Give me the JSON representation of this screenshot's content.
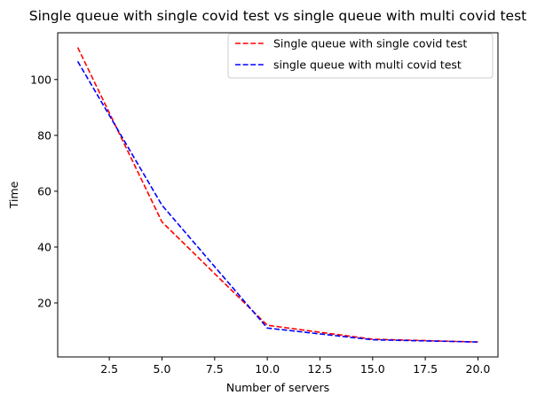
{
  "chart_data": {
    "type": "line",
    "title": "Single queue with single covid test vs single queue with multi covid test",
    "xlabel": "Number of servers",
    "ylabel": "Time",
    "xlim": [
      0.05,
      20.95
    ],
    "ylim": [
      0.65,
      116.75
    ],
    "xticks": [
      2.5,
      5.0,
      7.5,
      10.0,
      12.5,
      15.0,
      17.5,
      20.0
    ],
    "xtick_labels": [
      "2.5",
      "5.0",
      "7.5",
      "10.0",
      "12.5",
      "15.0",
      "17.5",
      "20.0"
    ],
    "yticks": [
      20,
      40,
      60,
      80,
      100
    ],
    "ytick_labels": [
      "20",
      "40",
      "60",
      "80",
      "100"
    ],
    "grid": false,
    "legend_position": "top-right",
    "series": [
      {
        "name": "Single queue with single covid test",
        "color": "#ff0000",
        "line_style": "dashed",
        "x": [
          1,
          5,
          10,
          15,
          20
        ],
        "y": [
          111.5,
          49,
          12,
          7,
          6
        ]
      },
      {
        "name": "single queue with multi covid test",
        "color": "#0000ff",
        "line_style": "dashed",
        "x": [
          1,
          5,
          10,
          15,
          20
        ],
        "y": [
          106.5,
          55,
          11,
          6.8,
          6
        ]
      }
    ]
  }
}
